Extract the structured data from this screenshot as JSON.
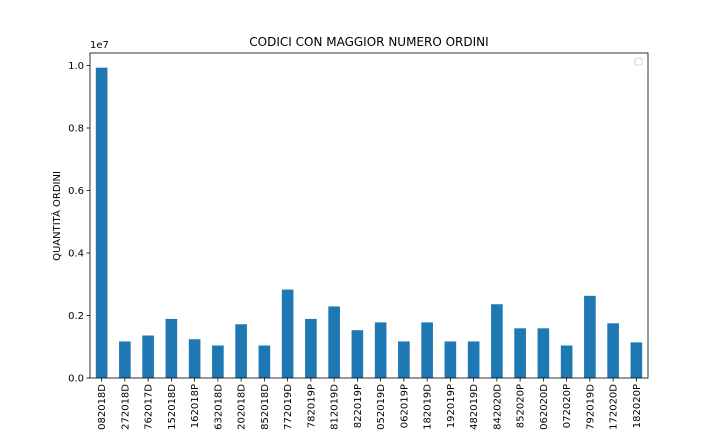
{
  "chart_data": {
    "type": "bar",
    "title": "CODICI CON MAGGIOR NUMERO ORDINI",
    "xlabel": "",
    "ylabel": "QUANTITÀ ORDINI",
    "y_multiplier_label": "1e7",
    "ylim": [
      0,
      1.04
    ],
    "yticks": [
      "0.0",
      "0.2",
      "0.4",
      "0.6",
      "0.8",
      "1.0"
    ],
    "categories": [
      "082018D",
      "272018D",
      "762017D",
      "152018D",
      "162018P",
      "632018D",
      "202018D",
      "852018D",
      "772019D",
      "782019P",
      "812019D",
      "822019P",
      "052019D",
      "062019P",
      "182019D",
      "192019P",
      "482019D",
      "842020D",
      "852020P",
      "062020D",
      "072020P",
      "792019D",
      "172020D",
      "182020P"
    ],
    "values": [
      0.993,
      0.117,
      0.136,
      0.189,
      0.124,
      0.104,
      0.172,
      0.104,
      0.283,
      0.189,
      0.229,
      0.153,
      0.178,
      0.117,
      0.178,
      0.117,
      0.117,
      0.236,
      0.159,
      0.159,
      0.104,
      0.263,
      0.175,
      0.114
    ],
    "bar_color": "#1f77b4",
    "grid": false,
    "legend": "top-right (empty)"
  }
}
